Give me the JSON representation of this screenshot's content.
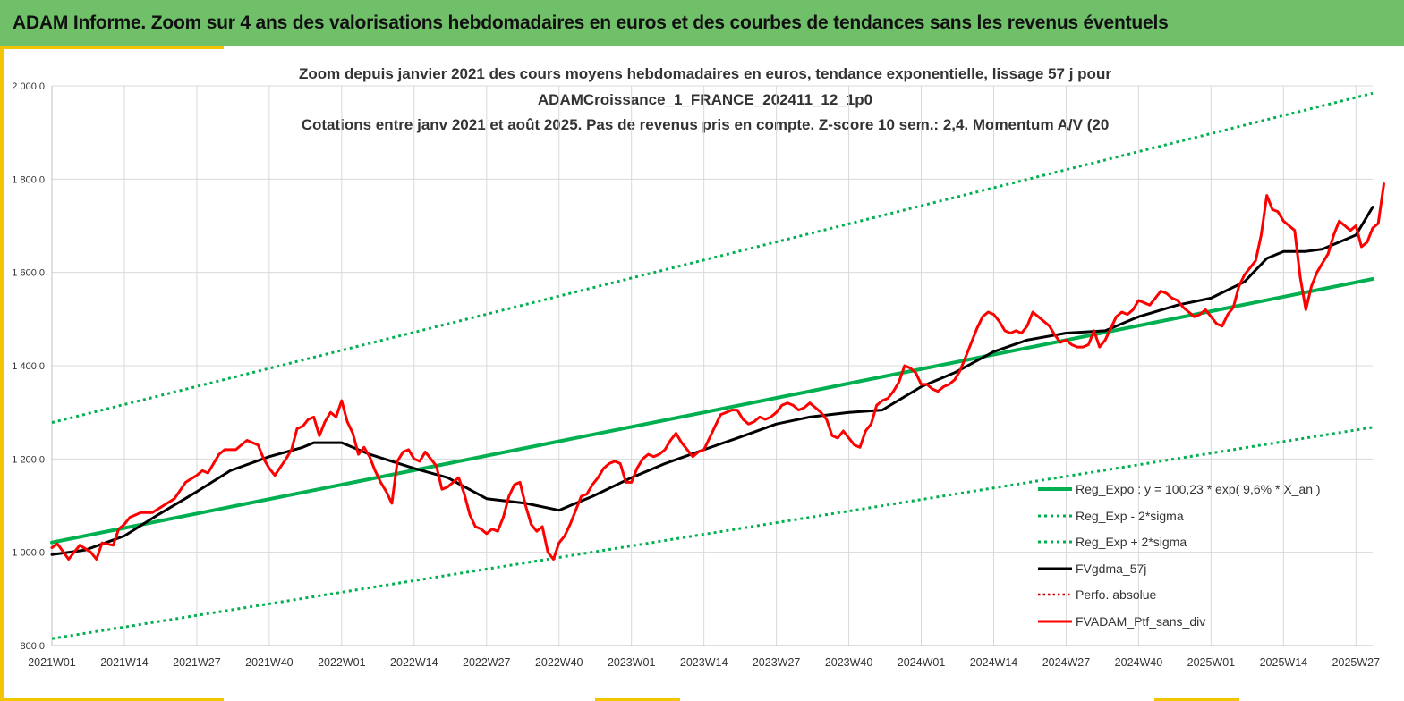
{
  "banner": {
    "title": "ADAM Informe. Zoom sur 4 ans des valorisations hebdomadaires en euros et des courbes de tendances sans les revenus éventuels"
  },
  "colors": {
    "banner": "#70c06a",
    "accent_yellow": "#f2c500",
    "trend_green": "#00b050",
    "black_line": "#000000",
    "red_line": "#ff0000",
    "perf_dotted": "#c00000"
  },
  "chart_data": {
    "type": "line",
    "title_lines": [
      "Zoom depuis janvier 2021 des cours moyens hebdomadaires  en euros, tendance exponentielle, lissage 57 j pour",
      "ADAMCroissance_1_FRANCE_202411_12_1p0",
      "Cotations  entre janv 2021 et août 2025. Pas de revenus pris en compte. Z-score 10 sem.: 2,4. Momentum A/V (20"
    ],
    "xlabel": "",
    "ylabel": "",
    "ylim": [
      800,
      2000
    ],
    "yticks": [
      {
        "value": 800,
        "label": "800,0"
      },
      {
        "value": 1000,
        "label": "1 000,0"
      },
      {
        "value": 1200,
        "label": "1 200,0"
      },
      {
        "value": 1400,
        "label": "1 400,0"
      },
      {
        "value": 1600,
        "label": "1 600,0"
      },
      {
        "value": 1800,
        "label": "1 800,0"
      },
      {
        "value": 2000,
        "label": "2 000,0"
      }
    ],
    "xticks": [
      "2021W01",
      "2021W14",
      "2021W27",
      "2021W40",
      "2022W01",
      "2022W14",
      "2022W27",
      "2022W40",
      "2023W01",
      "2023W14",
      "2023W27",
      "2023W40",
      "2024W01",
      "2024W14",
      "2024W27",
      "2024W40",
      "2025W01",
      "2025W14",
      "2025W27"
    ],
    "x_weeks": [
      1,
      14,
      27,
      40,
      53,
      66,
      79,
      92,
      105,
      118,
      131,
      144,
      157,
      170,
      183,
      196,
      209,
      222,
      235
    ],
    "x_range": [
      1,
      238
    ],
    "grid": true,
    "legend_position": "bottom-right",
    "series": [
      {
        "name": "Reg_Expo : y = 100,23 * exp( 9,6% *  X_an )",
        "style": "solid-green",
        "points": [
          [
            1,
            1021
          ],
          [
            238,
            1586
          ]
        ]
      },
      {
        "name": "Reg_Exp - 2*sigma",
        "style": "dotted-green",
        "points": [
          [
            1,
            815
          ],
          [
            238,
            1268
          ]
        ]
      },
      {
        "name": "Reg_Exp + 2*sigma",
        "style": "dotted-green",
        "points": [
          [
            1,
            1278
          ],
          [
            238,
            1984
          ]
        ]
      },
      {
        "name": "FVgdma_57j",
        "style": "solid-black",
        "points": [
          [
            1,
            995
          ],
          [
            7,
            1005
          ],
          [
            14,
            1035
          ],
          [
            20,
            1080
          ],
          [
            27,
            1130
          ],
          [
            33,
            1175
          ],
          [
            40,
            1205
          ],
          [
            46,
            1225
          ],
          [
            48,
            1235
          ],
          [
            53,
            1235
          ],
          [
            58,
            1210
          ],
          [
            66,
            1180
          ],
          [
            72,
            1160
          ],
          [
            79,
            1115
          ],
          [
            86,
            1105
          ],
          [
            92,
            1090
          ],
          [
            98,
            1120
          ],
          [
            105,
            1160
          ],
          [
            111,
            1190
          ],
          [
            118,
            1220
          ],
          [
            124,
            1245
          ],
          [
            131,
            1275
          ],
          [
            137,
            1290
          ],
          [
            144,
            1300
          ],
          [
            150,
            1305
          ],
          [
            157,
            1355
          ],
          [
            163,
            1385
          ],
          [
            170,
            1430
          ],
          [
            176,
            1455
          ],
          [
            183,
            1470
          ],
          [
            190,
            1475
          ],
          [
            196,
            1505
          ],
          [
            203,
            1530
          ],
          [
            209,
            1545
          ],
          [
            215,
            1580
          ],
          [
            219,
            1630
          ],
          [
            222,
            1645
          ],
          [
            226,
            1645
          ],
          [
            229,
            1650
          ],
          [
            235,
            1680
          ],
          [
            238,
            1740
          ]
        ]
      },
      {
        "name": "Perfo. absolue",
        "style": "dotted-darkred",
        "points": []
      },
      {
        "name": "FVADAM_Ptf_sans_div",
        "style": "solid-red",
        "points": [
          [
            1,
            1010
          ],
          [
            2,
            1018
          ],
          [
            4,
            985
          ],
          [
            6,
            1015
          ],
          [
            8,
            1000
          ],
          [
            9,
            985
          ],
          [
            10,
            1020
          ],
          [
            12,
            1015
          ],
          [
            13,
            1050
          ],
          [
            14,
            1060
          ],
          [
            15,
            1075
          ],
          [
            17,
            1085
          ],
          [
            19,
            1085
          ],
          [
            21,
            1100
          ],
          [
            23,
            1115
          ],
          [
            25,
            1150
          ],
          [
            27,
            1165
          ],
          [
            28,
            1175
          ],
          [
            29,
            1170
          ],
          [
            31,
            1210
          ],
          [
            32,
            1220
          ],
          [
            33,
            1220
          ],
          [
            34,
            1220
          ],
          [
            36,
            1240
          ],
          [
            38,
            1230
          ],
          [
            39,
            1200
          ],
          [
            40,
            1180
          ],
          [
            41,
            1165
          ],
          [
            43,
            1200
          ],
          [
            44,
            1220
          ],
          [
            45,
            1265
          ],
          [
            46,
            1270
          ],
          [
            47,
            1285
          ],
          [
            48,
            1290
          ],
          [
            49,
            1250
          ],
          [
            50,
            1280
          ],
          [
            51,
            1300
          ],
          [
            52,
            1290
          ],
          [
            53,
            1325
          ],
          [
            54,
            1280
          ],
          [
            55,
            1255
          ],
          [
            56,
            1210
          ],
          [
            57,
            1225
          ],
          [
            58,
            1205
          ],
          [
            59,
            1175
          ],
          [
            60,
            1150
          ],
          [
            61,
            1130
          ],
          [
            62,
            1105
          ],
          [
            63,
            1195
          ],
          [
            64,
            1215
          ],
          [
            65,
            1220
          ],
          [
            66,
            1200
          ],
          [
            67,
            1195
          ],
          [
            68,
            1215
          ],
          [
            69,
            1200
          ],
          [
            70,
            1185
          ],
          [
            71,
            1135
          ],
          [
            72,
            1140
          ],
          [
            73,
            1150
          ],
          [
            74,
            1160
          ],
          [
            75,
            1125
          ],
          [
            76,
            1080
          ],
          [
            77,
            1055
          ],
          [
            78,
            1050
          ],
          [
            79,
            1040
          ],
          [
            80,
            1050
          ],
          [
            81,
            1045
          ],
          [
            82,
            1075
          ],
          [
            83,
            1120
          ],
          [
            84,
            1145
          ],
          [
            85,
            1150
          ],
          [
            86,
            1100
          ],
          [
            87,
            1060
          ],
          [
            88,
            1045
          ],
          [
            89,
            1055
          ],
          [
            90,
            1000
          ],
          [
            91,
            985
          ],
          [
            92,
            1020
          ],
          [
            93,
            1035
          ],
          [
            94,
            1060
          ],
          [
            95,
            1090
          ],
          [
            96,
            1120
          ],
          [
            97,
            1125
          ],
          [
            98,
            1145
          ],
          [
            99,
            1160
          ],
          [
            100,
            1180
          ],
          [
            101,
            1190
          ],
          [
            102,
            1195
          ],
          [
            103,
            1190
          ],
          [
            104,
            1150
          ],
          [
            105,
            1150
          ],
          [
            106,
            1180
          ],
          [
            107,
            1200
          ],
          [
            108,
            1210
          ],
          [
            109,
            1205
          ],
          [
            110,
            1210
          ],
          [
            111,
            1220
          ],
          [
            112,
            1240
          ],
          [
            113,
            1255
          ],
          [
            114,
            1235
          ],
          [
            115,
            1220
          ],
          [
            116,
            1205
          ],
          [
            117,
            1215
          ],
          [
            118,
            1220
          ],
          [
            119,
            1245
          ],
          [
            120,
            1270
          ],
          [
            121,
            1295
          ],
          [
            122,
            1300
          ],
          [
            123,
            1305
          ],
          [
            124,
            1305
          ],
          [
            125,
            1285
          ],
          [
            126,
            1275
          ],
          [
            127,
            1280
          ],
          [
            128,
            1290
          ],
          [
            129,
            1285
          ],
          [
            130,
            1290
          ],
          [
            131,
            1300
          ],
          [
            132,
            1315
          ],
          [
            133,
            1320
          ],
          [
            134,
            1315
          ],
          [
            135,
            1305
          ],
          [
            136,
            1310
          ],
          [
            137,
            1320
          ],
          [
            138,
            1310
          ],
          [
            139,
            1300
          ],
          [
            140,
            1285
          ],
          [
            141,
            1250
          ],
          [
            142,
            1245
          ],
          [
            143,
            1260
          ],
          [
            144,
            1245
          ],
          [
            145,
            1230
          ],
          [
            146,
            1225
          ],
          [
            147,
            1260
          ],
          [
            148,
            1275
          ],
          [
            149,
            1315
          ],
          [
            150,
            1325
          ],
          [
            151,
            1330
          ],
          [
            152,
            1345
          ],
          [
            153,
            1365
          ],
          [
            154,
            1400
          ],
          [
            155,
            1395
          ],
          [
            156,
            1385
          ],
          [
            157,
            1360
          ],
          [
            158,
            1360
          ],
          [
            159,
            1350
          ],
          [
            160,
            1345
          ],
          [
            161,
            1355
          ],
          [
            162,
            1360
          ],
          [
            163,
            1370
          ],
          [
            164,
            1390
          ],
          [
            165,
            1420
          ],
          [
            166,
            1450
          ],
          [
            167,
            1480
          ],
          [
            168,
            1505
          ],
          [
            169,
            1515
          ],
          [
            170,
            1510
          ],
          [
            171,
            1495
          ],
          [
            172,
            1475
          ],
          [
            173,
            1470
          ],
          [
            174,
            1475
          ],
          [
            175,
            1470
          ],
          [
            176,
            1485
          ],
          [
            177,
            1515
          ],
          [
            178,
            1505
          ],
          [
            179,
            1495
          ],
          [
            180,
            1485
          ],
          [
            181,
            1465
          ],
          [
            182,
            1450
          ],
          [
            183,
            1455
          ],
          [
            184,
            1445
          ],
          [
            185,
            1440
          ],
          [
            186,
            1440
          ],
          [
            187,
            1445
          ],
          [
            188,
            1475
          ],
          [
            189,
            1440
          ],
          [
            190,
            1455
          ],
          [
            191,
            1480
          ],
          [
            192,
            1505
          ],
          [
            193,
            1515
          ],
          [
            194,
            1510
          ],
          [
            195,
            1520
          ],
          [
            196,
            1540
          ],
          [
            197,
            1535
          ],
          [
            198,
            1530
          ],
          [
            199,
            1545
          ],
          [
            200,
            1560
          ],
          [
            201,
            1555
          ],
          [
            202,
            1545
          ],
          [
            203,
            1540
          ],
          [
            204,
            1525
          ],
          [
            205,
            1515
          ],
          [
            206,
            1505
          ],
          [
            207,
            1510
          ],
          [
            208,
            1520
          ],
          [
            209,
            1505
          ],
          [
            210,
            1490
          ],
          [
            211,
            1485
          ],
          [
            212,
            1510
          ],
          [
            213,
            1525
          ],
          [
            214,
            1570
          ],
          [
            215,
            1595
          ],
          [
            216,
            1610
          ],
          [
            217,
            1625
          ],
          [
            218,
            1680
          ],
          [
            219,
            1765
          ],
          [
            220,
            1735
          ],
          [
            221,
            1730
          ],
          [
            222,
            1710
          ],
          [
            223,
            1700
          ],
          [
            224,
            1690
          ],
          [
            225,
            1590
          ],
          [
            226,
            1520
          ],
          [
            227,
            1570
          ],
          [
            228,
            1600
          ],
          [
            229,
            1620
          ],
          [
            230,
            1640
          ],
          [
            231,
            1680
          ],
          [
            232,
            1710
          ],
          [
            233,
            1700
          ],
          [
            234,
            1690
          ],
          [
            235,
            1700
          ],
          [
            236,
            1655
          ],
          [
            237,
            1665
          ],
          [
            238,
            1695
          ],
          [
            239,
            1705
          ],
          [
            240,
            1790
          ]
        ]
      }
    ]
  }
}
